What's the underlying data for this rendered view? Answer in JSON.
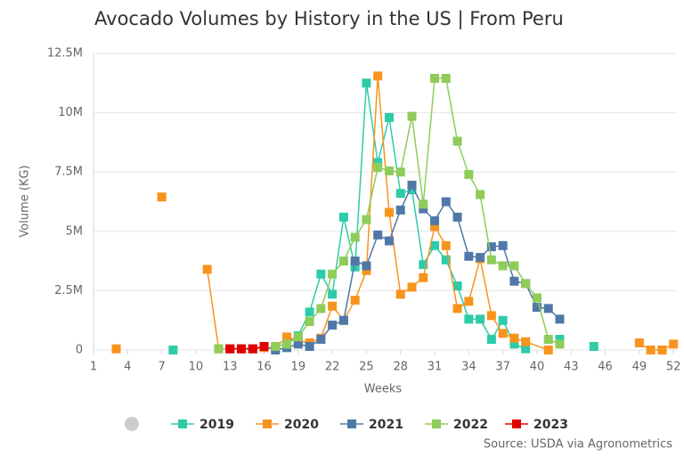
{
  "chart_data": {
    "type": "line",
    "title": "Avocado Volumes by History in the US | From Peru",
    "x_label": "Weeks",
    "y_label": "Volume (KG)",
    "source": "Source: USDA via Agronometrics",
    "xlim": [
      1,
      52.3
    ],
    "xticks": [
      1,
      4,
      7,
      10,
      13,
      16,
      19,
      22,
      25,
      28,
      31,
      34,
      37,
      40,
      43,
      46,
      49,
      52
    ],
    "ylim": [
      0,
      12500000
    ],
    "yticks": [
      0,
      {
        "value": 2500000,
        "label": "2.5M"
      },
      {
        "value": 5000000,
        "label": "5M"
      },
      {
        "value": 7500000,
        "label": "7.5M"
      },
      {
        "value": 10000000,
        "label": "10M"
      },
      {
        "value": 12500000,
        "label": "12.5M"
      }
    ],
    "grid": true,
    "series": [
      {
        "name": "2019",
        "color": "#2ecbaa",
        "x": [
          8,
          9,
          17,
          18,
          19,
          20,
          21,
          22,
          23,
          24,
          25,
          26,
          27,
          28,
          29,
          30,
          31,
          32,
          33,
          34,
          35,
          36,
          37,
          38,
          39,
          40,
          42,
          43,
          45
        ],
        "values": [
          0,
          null,
          100000,
          300000,
          600000,
          1600000,
          3200000,
          2350000,
          5600000,
          3500000,
          11250000,
          7900000,
          9800000,
          6600000,
          6750000,
          3600000,
          4400000,
          3800000,
          2700000,
          1300000,
          1300000,
          450000,
          1250000,
          250000,
          50000,
          null,
          450000,
          null,
          150000
        ]
      },
      {
        "name": "2020",
        "color": "#f7941d",
        "x": [
          3,
          4,
          7,
          8,
          11,
          12,
          13,
          14,
          15,
          16,
          17,
          18,
          19,
          20,
          21,
          22,
          23,
          24,
          25,
          26,
          27,
          28,
          29,
          30,
          31,
          32,
          33,
          34,
          35,
          36,
          37,
          38,
          39,
          41,
          42,
          49,
          50,
          51,
          52
        ],
        "values": [
          50000,
          null,
          6450000,
          null,
          3400000,
          50000,
          50000,
          50000,
          50000,
          100000,
          100000,
          550000,
          400000,
          300000,
          500000,
          1850000,
          1250000,
          2100000,
          3350000,
          11550000,
          5800000,
          2350000,
          2650000,
          3050000,
          5200000,
          4400000,
          1750000,
          2050000,
          3850000,
          1450000,
          700000,
          500000,
          350000,
          0,
          null,
          300000,
          0,
          0,
          250000
        ]
      },
      {
        "name": "2021",
        "color": "#4f78a8",
        "x": [
          13,
          14,
          15,
          16,
          17,
          18,
          19,
          20,
          21,
          22,
          23,
          24,
          25,
          26,
          27,
          28,
          29,
          30,
          31,
          32,
          33,
          34,
          35,
          36,
          37,
          38,
          39,
          40,
          41,
          42
        ],
        "values": [
          50000,
          50000,
          50000,
          150000,
          0,
          100000,
          250000,
          150000,
          450000,
          1050000,
          1250000,
          3750000,
          3550000,
          4850000,
          4600000,
          5900000,
          6950000,
          5950000,
          5450000,
          6250000,
          5600000,
          3950000,
          3900000,
          4350000,
          4400000,
          2900000,
          2800000,
          1800000,
          1750000,
          1300000
        ]
      },
      {
        "name": "2022",
        "color": "#8fcc5a",
        "x": [
          12,
          13,
          17,
          18,
          19,
          20,
          21,
          22,
          23,
          24,
          25,
          26,
          27,
          28,
          29,
          30,
          31,
          32,
          33,
          34,
          35,
          36,
          37,
          38,
          39,
          40,
          41,
          42
        ],
        "values": [
          50000,
          null,
          150000,
          250000,
          550000,
          1200000,
          1750000,
          3200000,
          3750000,
          4750000,
          5500000,
          7700000,
          7550000,
          7500000,
          9850000,
          6150000,
          11450000,
          11450000,
          8800000,
          7400000,
          6550000,
          3800000,
          3550000,
          3550000,
          2800000,
          2200000,
          450000,
          250000
        ]
      },
      {
        "name": "2023",
        "color": "#e00000",
        "x": [
          13,
          14,
          15,
          16
        ],
        "values": [
          50000,
          50000,
          50000,
          150000
        ]
      }
    ]
  }
}
